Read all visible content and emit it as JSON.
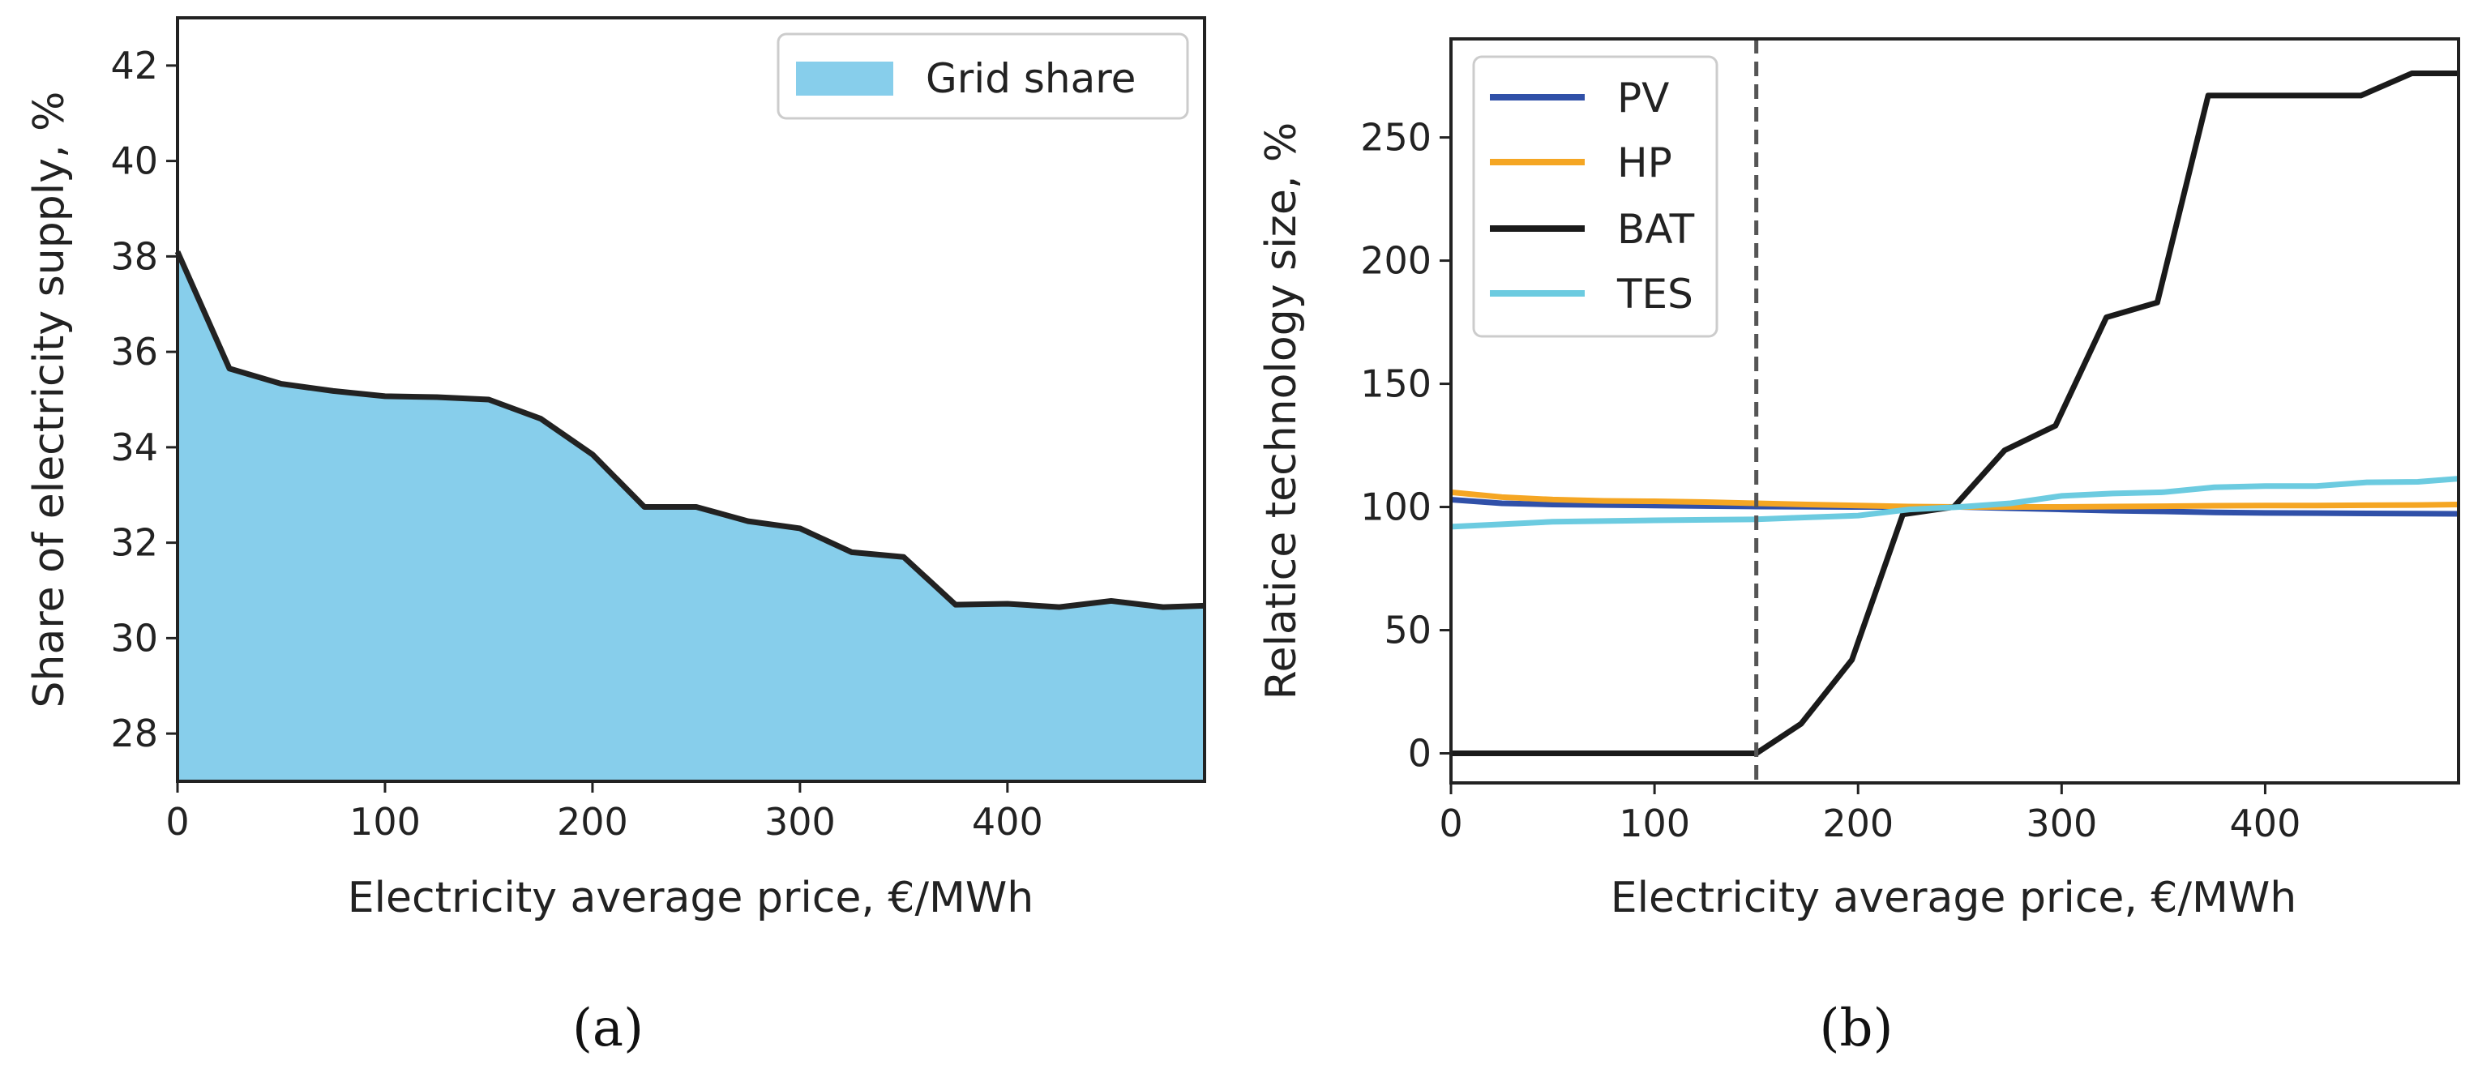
{
  "chart_data": [
    {
      "type": "area",
      "panel": "(a)",
      "xlabel": "Electricity average price, €/MWh",
      "ylabel": "Share of electricity supply, %",
      "xlim": [
        0,
        495
      ],
      "ylim": [
        27,
        43
      ],
      "xticks": [
        0,
        100,
        200,
        300,
        400
      ],
      "yticks": [
        28,
        30,
        32,
        34,
        36,
        38,
        40,
        42
      ],
      "series": [
        {
          "name": "Grid share",
          "color": "#87ceeb",
          "line_color": "#222222",
          "x": [
            0,
            25,
            50,
            75,
            100,
            125,
            150,
            175,
            200,
            225,
            250,
            275,
            300,
            325,
            350,
            375,
            400,
            425,
            450,
            475,
            495
          ],
          "values": [
            38.1,
            35.65,
            35.33,
            35.18,
            35.07,
            35.05,
            35.0,
            34.6,
            33.85,
            32.75,
            32.75,
            32.45,
            32.3,
            31.8,
            31.7,
            30.7,
            30.72,
            30.65,
            30.78,
            30.65,
            30.68
          ]
        }
      ],
      "legend": {
        "position": "top-right",
        "entries": [
          "Grid share"
        ]
      }
    },
    {
      "type": "line",
      "panel": "(b)",
      "xlabel": "Electricity average price, €/MWh",
      "ylabel": "Relatice technology size, %",
      "xlim": [
        0,
        495
      ],
      "ylim": [
        -12,
        290
      ],
      "xticks": [
        0,
        100,
        200,
        300,
        400
      ],
      "yticks": [
        0,
        50,
        100,
        150,
        200,
        250
      ],
      "vline": {
        "x": 150,
        "style": "dashed",
        "color": "#555555"
      },
      "legend": {
        "position": "top-left",
        "entries": [
          "PV",
          "HP",
          "BAT",
          "TES"
        ]
      },
      "series": [
        {
          "name": "PV",
          "color": "#3050a8",
          "x": [
            0,
            25,
            50,
            75,
            100,
            125,
            150,
            175,
            200,
            225,
            250,
            275,
            300,
            325,
            350,
            375,
            400,
            425,
            450,
            475,
            495
          ],
          "values": [
            103,
            101.5,
            101,
            100.8,
            100.6,
            100.4,
            100.2,
            100.1,
            100,
            100,
            100,
            99.5,
            99,
            98.5,
            98.2,
            97.8,
            97.6,
            97.5,
            97.4,
            97.3,
            97.2
          ]
        },
        {
          "name": "HP",
          "color": "#f5a623",
          "x": [
            0,
            25,
            50,
            75,
            100,
            125,
            150,
            175,
            200,
            225,
            250,
            275,
            300,
            325,
            350,
            375,
            400,
            425,
            450,
            475,
            495
          ],
          "values": [
            106,
            104,
            103,
            102.5,
            102.3,
            102,
            101.5,
            101,
            100.6,
            100.2,
            100,
            100,
            100,
            100.2,
            100.3,
            100.5,
            100.6,
            100.6,
            100.7,
            100.8,
            101
          ]
        },
        {
          "name": "BAT",
          "color": "#1a1a1a",
          "x": [
            0,
            50,
            100,
            150,
            172,
            197,
            222,
            247,
            272,
            297,
            322,
            347,
            372,
            397,
            422,
            447,
            472,
            495
          ],
          "values": [
            0,
            0,
            0,
            0,
            12,
            38,
            97,
            100,
            123,
            133,
            177,
            183,
            267,
            267,
            267,
            267,
            276,
            276
          ]
        },
        {
          "name": "TES",
          "color": "#6ccbe0",
          "x": [
            0,
            25,
            50,
            75,
            100,
            125,
            150,
            175,
            200,
            225,
            250,
            275,
            300,
            325,
            350,
            375,
            400,
            425,
            450,
            475,
            495
          ],
          "values": [
            92,
            93,
            94,
            94.3,
            94.6,
            94.8,
            95,
            95.8,
            96.5,
            99,
            100,
            101.5,
            104.5,
            105.5,
            106,
            108,
            108.5,
            108.5,
            110,
            110.2,
            111.5
          ]
        }
      ]
    }
  ],
  "captions": {
    "a": "(a)",
    "b": "(b)"
  }
}
